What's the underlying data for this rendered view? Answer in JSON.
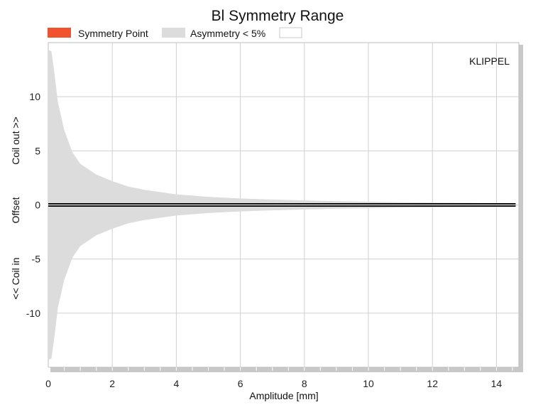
{
  "chart_data": {
    "type": "area",
    "title": "Bl Symmetry Range",
    "xlabel": "Amplitude [mm]",
    "ylabel_parts": [
      "<< Coil in",
      "Offset",
      "Coil out >>"
    ],
    "watermark": "KLIPPEL",
    "xlim": [
      0,
      14.7
    ],
    "ylim": [
      -15,
      15
    ],
    "xticks": [
      "0",
      "2",
      "4",
      "6",
      "8",
      "10",
      "12",
      "14"
    ],
    "yticks": [
      "10",
      "5",
      "0",
      "-5",
      "-10"
    ],
    "xtick_values": [
      0,
      2,
      4,
      6,
      8,
      10,
      12,
      14
    ],
    "ytick_values": [
      10,
      5,
      0,
      -5,
      -10
    ],
    "grid": true,
    "legend": [
      {
        "name": "Symmetry Point",
        "color": "#f0512e"
      },
      {
        "name": "Asymmetry < 5%",
        "color": "#dcdcdc"
      },
      {
        "name": "",
        "color": "#ffffff"
      }
    ],
    "series": [
      {
        "name": "Symmetry Point",
        "color": "#000000",
        "x": [
          0,
          14.6
        ],
        "y": [
          0,
          0
        ]
      },
      {
        "name": "Asymmetry < 5%",
        "color": "#dcdcdc",
        "x": [
          0.02,
          0.1,
          0.2,
          0.3,
          0.5,
          0.75,
          1,
          1.5,
          2,
          2.5,
          3,
          4,
          5,
          6,
          7,
          8,
          9,
          10,
          11,
          12,
          13,
          14,
          14.6
        ],
        "upper": [
          14.3,
          14.2,
          12.0,
          9.5,
          6.9,
          4.9,
          3.8,
          2.8,
          2.2,
          1.7,
          1.4,
          0.98,
          0.75,
          0.6,
          0.5,
          0.42,
          0.35,
          0.3,
          0.25,
          0.22,
          0.19,
          0.17,
          0.15
        ],
        "lower": [
          -14.3,
          -14.2,
          -12.0,
          -9.5,
          -6.9,
          -4.9,
          -3.8,
          -2.8,
          -2.2,
          -1.7,
          -1.4,
          -0.98,
          -0.75,
          -0.6,
          -0.5,
          -0.42,
          -0.35,
          -0.3,
          -0.25,
          -0.22,
          -0.19,
          -0.17,
          -0.15
        ]
      }
    ]
  }
}
